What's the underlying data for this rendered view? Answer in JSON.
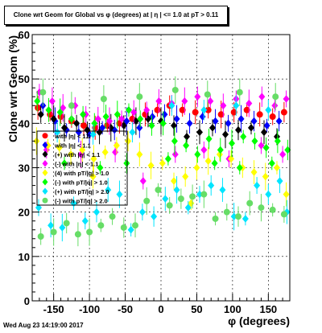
{
  "chart_data": {
    "type": "scatter",
    "title": "Clone wrt Geom for Global vs φ (degrees) at | η | <= 1.0 at pT > 0.11",
    "xlabel": "φ (degrees)",
    "ylabel": "Clone wrt Geom (%)",
    "xlim": [
      -180,
      180
    ],
    "ylim": [
      0,
      60
    ],
    "x_ticks": [
      -150,
      -100,
      -50,
      0,
      50,
      100,
      150
    ],
    "y_ticks": [
      0,
      10,
      20,
      30,
      40,
      50,
      60
    ],
    "grid": true,
    "legend_position": "left, overlapping data near y=30",
    "series": [
      {
        "name": "with |η| < 1.1",
        "color": "#ff0000",
        "marker": "circle",
        "points": [
          [
            -172,
            43.5
          ],
          [
            -155,
            42
          ],
          [
            -140,
            41.5
          ],
          [
            -125,
            40.5
          ],
          [
            -108,
            39.5
          ],
          [
            -92,
            39
          ],
          [
            -75,
            39.5
          ],
          [
            -58,
            40
          ],
          [
            -40,
            41
          ],
          [
            -22,
            42
          ],
          [
            -5,
            43
          ],
          [
            12,
            44
          ],
          [
            30,
            43
          ],
          [
            48,
            42.5
          ],
          [
            66,
            43
          ],
          [
            84,
            42
          ],
          [
            102,
            42.5
          ],
          [
            120,
            43
          ],
          [
            138,
            42
          ],
          [
            156,
            41.5
          ],
          [
            172,
            42.5
          ]
        ]
      },
      {
        "name": "with |η| < 1.1",
        "color": "#0000ff",
        "marker": "diamond",
        "points": [
          [
            -165,
            44
          ],
          [
            -148,
            40.5
          ],
          [
            -132,
            38.5
          ],
          [
            -115,
            38
          ],
          [
            -100,
            37.5
          ],
          [
            -82,
            39
          ],
          [
            -65,
            38.5
          ],
          [
            -48,
            40.5
          ],
          [
            -30,
            39
          ],
          [
            -12,
            41.5
          ],
          [
            5,
            42
          ],
          [
            22,
            41
          ],
          [
            40,
            40
          ],
          [
            58,
            41.5
          ],
          [
            76,
            40.5
          ],
          [
            94,
            40
          ],
          [
            112,
            41
          ],
          [
            130,
            40.5
          ],
          [
            148,
            39.5
          ],
          [
            165,
            40.5
          ]
        ]
      },
      {
        "name": "(+) with |η| < 1.1",
        "color": "#000000",
        "marker": "diamond",
        "points": [
          [
            -168,
            42
          ],
          [
            -150,
            41
          ],
          [
            -135,
            39
          ],
          [
            -118,
            40
          ],
          [
            -103,
            38.5
          ],
          [
            -86,
            38
          ],
          [
            -70,
            39
          ],
          [
            -52,
            39.5
          ],
          [
            -35,
            40.5
          ],
          [
            -18,
            41
          ],
          [
            0,
            40.5
          ],
          [
            18,
            39.5
          ],
          [
            36,
            37
          ],
          [
            54,
            38
          ],
          [
            72,
            39
          ],
          [
            90,
            37.5
          ],
          [
            108,
            38.5
          ],
          [
            126,
            39
          ],
          [
            144,
            38
          ],
          [
            162,
            37
          ]
        ]
      },
      {
        "name": "(-) with |η| < 1.1",
        "color": "#ff00ff",
        "marker": "diamond",
        "points": [
          [
            -170,
            47
          ],
          [
            -152,
            45
          ],
          [
            -137,
            43.5
          ],
          [
            -120,
            44
          ],
          [
            -105,
            42
          ],
          [
            -88,
            41
          ],
          [
            -72,
            40.5
          ],
          [
            -55,
            41
          ],
          [
            -38,
            42.5
          ],
          [
            -20,
            43
          ],
          [
            -3,
            45
          ],
          [
            15,
            44.5
          ],
          [
            33,
            45
          ],
          [
            51,
            46
          ],
          [
            69,
            45
          ],
          [
            87,
            44
          ],
          [
            105,
            45.5
          ],
          [
            123,
            44.5
          ],
          [
            141,
            46
          ],
          [
            159,
            44
          ],
          [
            175,
            45.5
          ],
          [
            -160,
            34
          ],
          [
            -112,
            33
          ],
          [
            -64,
            33.5
          ],
          [
            -25,
            27
          ],
          [
            20,
            33
          ],
          [
            60,
            34
          ],
          [
            95,
            32
          ],
          [
            140,
            35
          ],
          [
            170,
            33
          ]
        ]
      },
      {
        "name": "(4) with pT/|q| > 1.0",
        "color": "#ffff00",
        "marker": "diamond",
        "points": [
          [
            -174,
            36
          ],
          [
            -158,
            35
          ],
          [
            -142,
            34.5
          ],
          [
            -126,
            33
          ],
          [
            -110,
            34
          ],
          [
            -94,
            32
          ],
          [
            -78,
            33.5
          ],
          [
            -62,
            35
          ],
          [
            -46,
            36
          ],
          [
            -30,
            33
          ],
          [
            -14,
            30.5
          ],
          [
            2,
            31
          ],
          [
            18,
            27
          ],
          [
            34,
            28
          ],
          [
            50,
            30
          ],
          [
            66,
            31.5
          ],
          [
            82,
            33
          ],
          [
            98,
            32
          ],
          [
            114,
            30
          ],
          [
            130,
            29
          ],
          [
            146,
            28
          ],
          [
            162,
            30
          ],
          [
            175,
            24
          ],
          [
            -95,
            28
          ],
          [
            42,
            22
          ]
        ]
      },
      {
        "name": "(-) with pT/|q| > 1.0",
        "color": "#00ff00",
        "marker": "diamond",
        "points": [
          [
            -173,
            45
          ],
          [
            -157,
            43
          ],
          [
            -141,
            42.5
          ],
          [
            -125,
            41
          ],
          [
            -109,
            42
          ],
          [
            -93,
            40
          ],
          [
            -77,
            41.5
          ],
          [
            -61,
            42
          ],
          [
            -45,
            43
          ],
          [
            -29,
            41
          ],
          [
            -13,
            39.5
          ],
          [
            3,
            40
          ],
          [
            19,
            36
          ],
          [
            35,
            35
          ],
          [
            51,
            33
          ],
          [
            67,
            36.5
          ],
          [
            83,
            34
          ],
          [
            99,
            35.5
          ],
          [
            115,
            37
          ],
          [
            131,
            36
          ],
          [
            147,
            34.5
          ],
          [
            163,
            36
          ],
          [
            177,
            34
          ],
          [
            -135,
            31
          ],
          [
            -85,
            30
          ],
          [
            -48,
            31
          ],
          [
            10,
            32
          ],
          [
            75,
            31
          ],
          [
            110,
            30
          ],
          [
            155,
            31
          ]
        ]
      },
      {
        "name": "(+) with pT/|q| > 2.0",
        "color": "#00e5ff",
        "marker": "diamond",
        "points": [
          [
            -171,
            21
          ],
          [
            -154,
            17
          ],
          [
            -138,
            16.5
          ],
          [
            -122,
            22
          ],
          [
            -106,
            18
          ],
          [
            -90,
            20
          ],
          [
            -74,
            25
          ],
          [
            -58,
            24
          ],
          [
            -42,
            16
          ],
          [
            -26,
            20
          ],
          [
            -10,
            19
          ],
          [
            6,
            23
          ],
          [
            22,
            25
          ],
          [
            38,
            21
          ],
          [
            54,
            24
          ],
          [
            70,
            26
          ],
          [
            86,
            25
          ],
          [
            102,
            19
          ],
          [
            118,
            18.5
          ],
          [
            134,
            26
          ],
          [
            150,
            24
          ],
          [
            166,
            27
          ],
          [
            176,
            20
          ],
          [
            -145,
            38
          ],
          [
            -95,
            37.5
          ],
          [
            -40,
            38
          ],
          [
            15,
            44
          ],
          [
            60,
            43
          ],
          [
            105,
            44
          ],
          [
            150,
            43
          ]
        ]
      },
      {
        "name": "(-) with pT/|q| > 2.0",
        "color": "#66dd66",
        "marker": "circle",
        "points": [
          [
            -168,
            14.5
          ],
          [
            -150,
            15.5
          ],
          [
            -132,
            17.5
          ],
          [
            -116,
            15
          ],
          [
            -100,
            15.5
          ],
          [
            -84,
            17
          ],
          [
            -68,
            19
          ],
          [
            -52,
            16.5
          ],
          [
            -36,
            17
          ],
          [
            -20,
            22.5
          ],
          [
            -4,
            25
          ],
          [
            12,
            21.5
          ],
          [
            28,
            23
          ],
          [
            44,
            23.5
          ],
          [
            60,
            24
          ],
          [
            76,
            18.5
          ],
          [
            92,
            20
          ],
          [
            108,
            19
          ],
          [
            124,
            22
          ],
          [
            140,
            21
          ],
          [
            156,
            20.5
          ],
          [
            172,
            19.5
          ],
          [
            -165,
            47
          ],
          [
            -125,
            44
          ],
          [
            -80,
            45.5
          ],
          [
            -30,
            46
          ],
          [
            20,
            47.5
          ],
          [
            65,
            46.5
          ],
          [
            110,
            47
          ],
          [
            160,
            46
          ]
        ]
      }
    ]
  },
  "footer": "Wed Aug 23 14:19:00 2017"
}
